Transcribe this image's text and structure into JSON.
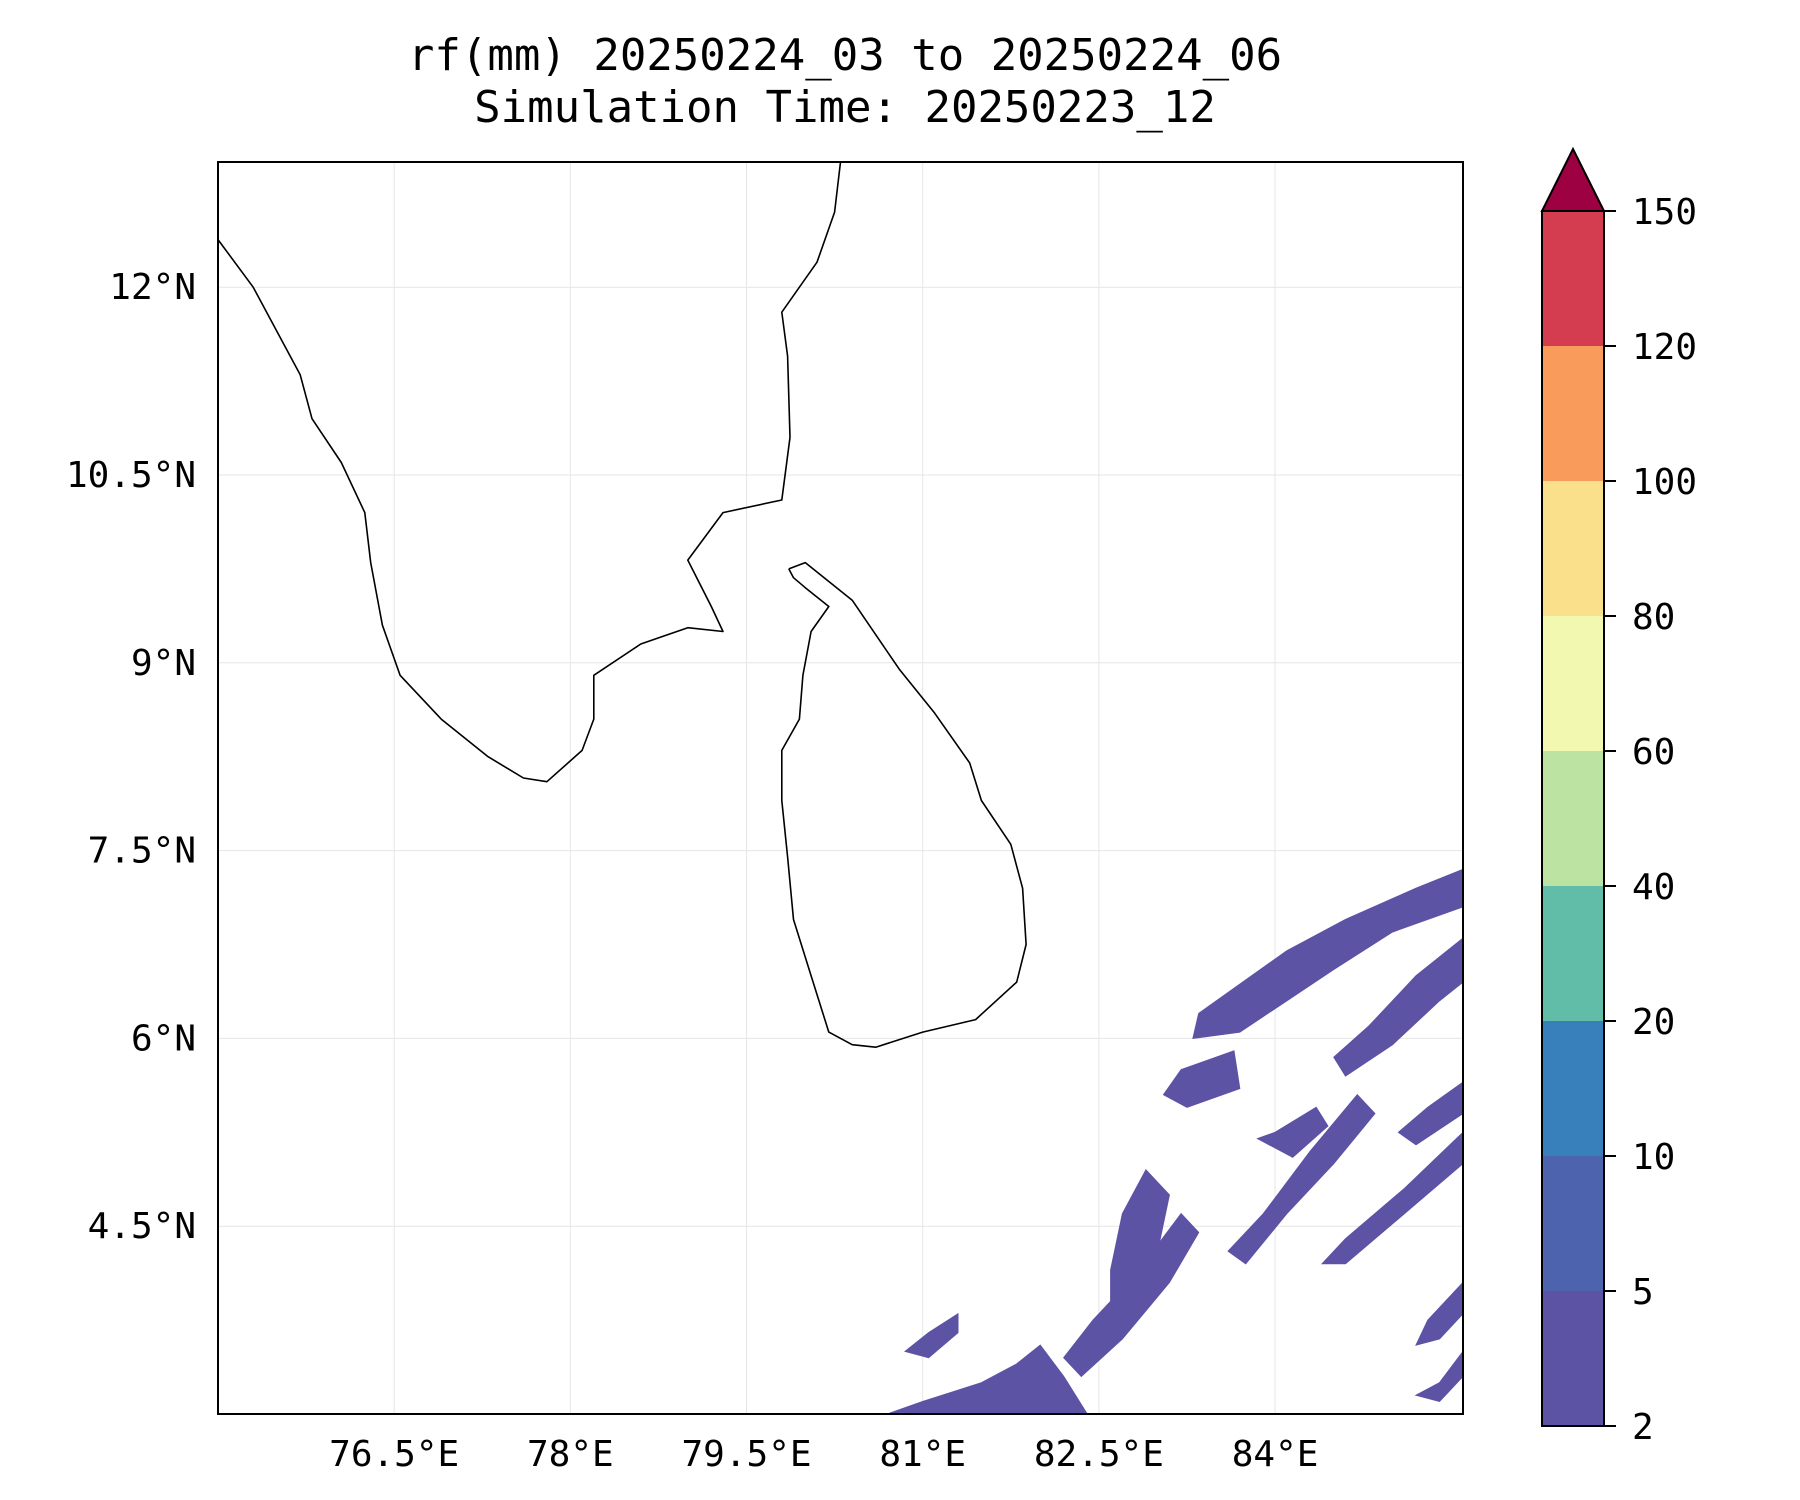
{
  "title": {
    "line1": "rf(mm) 20250224_03 to 20250224_06",
    "line2": "Simulation Time: 20250223_12"
  },
  "map": {
    "extent": {
      "lon": [
        75.0,
        85.6
      ],
      "lat": [
        3.0,
        13.0
      ]
    },
    "lon_ticks": [
      {
        "value": 76.5,
        "label": "76.5°E"
      },
      {
        "value": 78.0,
        "label": "78°E"
      },
      {
        "value": 79.5,
        "label": "79.5°E"
      },
      {
        "value": 81.0,
        "label": "81°E"
      },
      {
        "value": 82.5,
        "label": "82.5°E"
      },
      {
        "value": 84.0,
        "label": "84°E"
      }
    ],
    "lat_ticks": [
      {
        "value": 12.0,
        "label": "12°N"
      },
      {
        "value": 10.5,
        "label": "10.5°N"
      },
      {
        "value": 9.0,
        "label": "9°N"
      },
      {
        "value": 7.5,
        "label": "7.5°N"
      },
      {
        "value": 6.0,
        "label": "6°N"
      },
      {
        "value": 4.5,
        "label": "4.5°N"
      }
    ],
    "gridlines": true,
    "coast_color": "#000000",
    "rain_color": "#5c53a5",
    "coastlines": {
      "india": [
        [
          75.0,
          12.38
        ],
        [
          75.3,
          12.0
        ],
        [
          75.5,
          11.65
        ],
        [
          75.7,
          11.3
        ],
        [
          75.8,
          10.95
        ],
        [
          76.05,
          10.6
        ],
        [
          76.25,
          10.2
        ],
        [
          76.3,
          9.8
        ],
        [
          76.4,
          9.3
        ],
        [
          76.55,
          8.9
        ],
        [
          76.9,
          8.55
        ],
        [
          77.3,
          8.25
        ],
        [
          77.6,
          8.08
        ],
        [
          77.8,
          8.05
        ],
        [
          78.1,
          8.3
        ],
        [
          78.2,
          8.55
        ],
        [
          78.2,
          8.9
        ],
        [
          78.6,
          9.15
        ],
        [
          79.0,
          9.28
        ],
        [
          79.3,
          9.25
        ],
        [
          79.2,
          9.45
        ],
        [
          79.0,
          9.82
        ],
        [
          79.3,
          10.2
        ],
        [
          79.8,
          10.3
        ],
        [
          79.87,
          10.8
        ],
        [
          79.85,
          11.45
        ],
        [
          79.8,
          11.8
        ],
        [
          80.1,
          12.2
        ],
        [
          80.25,
          12.6
        ],
        [
          80.3,
          13.0
        ]
      ],
      "srilanka": [
        [
          79.86,
          9.75
        ],
        [
          80.0,
          9.8
        ],
        [
          80.4,
          9.5
        ],
        [
          80.8,
          8.95
        ],
        [
          81.1,
          8.6
        ],
        [
          81.4,
          8.2
        ],
        [
          81.5,
          7.9
        ],
        [
          81.75,
          7.55
        ],
        [
          81.85,
          7.2
        ],
        [
          81.88,
          6.75
        ],
        [
          81.8,
          6.45
        ],
        [
          81.45,
          6.15
        ],
        [
          81.0,
          6.05
        ],
        [
          80.6,
          5.93
        ],
        [
          80.4,
          5.95
        ],
        [
          80.2,
          6.05
        ],
        [
          80.05,
          6.5
        ],
        [
          79.9,
          6.95
        ],
        [
          79.85,
          7.45
        ],
        [
          79.8,
          7.9
        ],
        [
          79.8,
          8.3
        ],
        [
          79.95,
          8.55
        ],
        [
          79.98,
          8.9
        ],
        [
          80.05,
          9.25
        ],
        [
          80.2,
          9.45
        ],
        [
          80.0,
          9.6
        ],
        [
          79.9,
          9.68
        ],
        [
          79.86,
          9.75
        ]
      ]
    },
    "rain_polygons": [
      [
        [
          85.6,
          7.35
        ],
        [
          85.2,
          7.2
        ],
        [
          84.6,
          6.95
        ],
        [
          84.1,
          6.7
        ],
        [
          83.65,
          6.4
        ],
        [
          83.35,
          6.2
        ],
        [
          83.3,
          6.0
        ],
        [
          83.7,
          6.05
        ],
        [
          84.1,
          6.3
        ],
        [
          84.5,
          6.55
        ],
        [
          85.0,
          6.85
        ],
        [
          85.6,
          7.05
        ]
      ],
      [
        [
          85.6,
          6.8
        ],
        [
          85.2,
          6.5
        ],
        [
          84.8,
          6.1
        ],
        [
          84.5,
          5.85
        ],
        [
          84.6,
          5.7
        ],
        [
          85.0,
          5.95
        ],
        [
          85.4,
          6.3
        ],
        [
          85.6,
          6.45
        ]
      ],
      [
        [
          83.65,
          5.9
        ],
        [
          83.2,
          5.75
        ],
        [
          83.05,
          5.55
        ],
        [
          83.25,
          5.45
        ],
        [
          83.7,
          5.6
        ]
      ],
      [
        [
          84.35,
          5.45
        ],
        [
          84.0,
          5.25
        ],
        [
          83.85,
          5.2
        ],
        [
          84.15,
          5.05
        ],
        [
          84.45,
          5.3
        ]
      ],
      [
        [
          85.6,
          5.65
        ],
        [
          85.3,
          5.45
        ],
        [
          85.05,
          5.25
        ],
        [
          85.2,
          5.15
        ],
        [
          85.6,
          5.4
        ]
      ],
      [
        [
          84.7,
          5.55
        ],
        [
          84.3,
          5.1
        ],
        [
          83.9,
          4.6
        ],
        [
          83.6,
          4.3
        ],
        [
          83.75,
          4.2
        ],
        [
          84.1,
          4.6
        ],
        [
          84.5,
          5.0
        ],
        [
          84.85,
          5.4
        ]
      ],
      [
        [
          85.6,
          5.25
        ],
        [
          85.1,
          4.8
        ],
        [
          84.6,
          4.4
        ],
        [
          84.4,
          4.2
        ],
        [
          84.6,
          4.2
        ],
        [
          85.1,
          4.6
        ],
        [
          85.6,
          5.0
        ]
      ],
      [
        [
          82.0,
          3.55
        ],
        [
          81.8,
          3.4
        ],
        [
          81.5,
          3.25
        ],
        [
          81.0,
          3.1
        ],
        [
          80.7,
          3.0
        ],
        [
          82.4,
          3.0
        ],
        [
          82.2,
          3.3
        ]
      ],
      [
        [
          82.9,
          4.95
        ],
        [
          82.7,
          4.6
        ],
        [
          82.6,
          4.15
        ],
        [
          82.6,
          3.8
        ],
        [
          82.85,
          3.9
        ],
        [
          83.0,
          4.3
        ],
        [
          83.1,
          4.75
        ]
      ],
      [
        [
          83.2,
          4.6
        ],
        [
          82.8,
          4.1
        ],
        [
          82.45,
          3.75
        ],
        [
          82.2,
          3.45
        ],
        [
          82.35,
          3.3
        ],
        [
          82.7,
          3.6
        ],
        [
          83.1,
          4.05
        ],
        [
          83.35,
          4.45
        ]
      ],
      [
        [
          81.3,
          3.8
        ],
        [
          81.05,
          3.65
        ],
        [
          80.85,
          3.5
        ],
        [
          81.05,
          3.45
        ],
        [
          81.3,
          3.65
        ]
      ],
      [
        [
          85.6,
          4.05
        ],
        [
          85.3,
          3.75
        ],
        [
          85.2,
          3.55
        ],
        [
          85.4,
          3.6
        ],
        [
          85.6,
          3.8
        ]
      ],
      [
        [
          85.6,
          3.5
        ],
        [
          85.4,
          3.25
        ],
        [
          85.2,
          3.15
        ],
        [
          85.4,
          3.1
        ],
        [
          85.6,
          3.3
        ]
      ]
    ]
  },
  "colorbar": {
    "boundaries": [
      2,
      5,
      10,
      20,
      40,
      60,
      80,
      100,
      120,
      150
    ],
    "labels": [
      "2",
      "5",
      "10",
      "20",
      "40",
      "60",
      "80",
      "100",
      "120",
      "150"
    ],
    "colors": [
      "#5c53a5",
      "#4d63ae",
      "#3780bc",
      "#62bda8",
      "#bce3a1",
      "#f2f8af",
      "#fbe08c",
      "#f99c5b",
      "#d43d50"
    ],
    "extend_color": "#9e0142"
  }
}
